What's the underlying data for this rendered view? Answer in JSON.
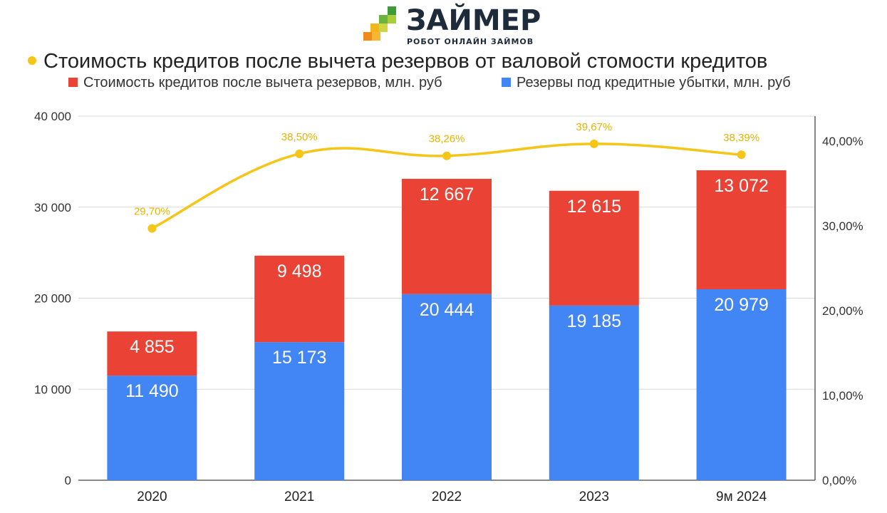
{
  "logo": {
    "name": "ЗАЙМЕР",
    "tagline": "РОБОТ ОНЛАЙН ЗАЙМОВ"
  },
  "colors": {
    "net": "#ea4335",
    "reserves": "#4285f4",
    "ratio": "#f5c518",
    "ratio_label": "#e8b400"
  },
  "chart_data": {
    "type": "bar",
    "stacked": true,
    "title": "Стоимость кредитов после вычета резервов от валовой стомости кредитов",
    "categories": [
      "2020",
      "2021",
      "2022",
      "2023",
      "9м 2024"
    ],
    "series": [
      {
        "name": "Резервы под кредитные убытки, млн. руб",
        "type": "bar",
        "axis": "left",
        "values": [
          11490,
          15173,
          20444,
          19185,
          20979
        ],
        "labels": [
          "11 490",
          "15 173",
          "20 444",
          "19 185",
          "20 979"
        ]
      },
      {
        "name": "Стоимость кредитов после вычета резервов, млн. руб",
        "type": "bar",
        "axis": "left",
        "values": [
          4855,
          9498,
          12667,
          12615,
          13072
        ],
        "labels": [
          "4 855",
          "9 498",
          "12 667",
          "12 615",
          "13 072"
        ]
      },
      {
        "name": "Стоимость кредитов после вычета резервов от валовой стомости кредитов",
        "type": "line",
        "axis": "right",
        "values": [
          29.7,
          38.5,
          38.26,
          39.67,
          38.39
        ],
        "labels": [
          "29,70%",
          "38,50%",
          "38,26%",
          "39,67%",
          "38,39%"
        ]
      }
    ],
    "legend": {
      "line_entry": "Стоимость кредитов после вычета резервов от валовой стомости кредитов",
      "bar_entries": [
        "Стоимость кредитов после вычета резервов, млн. руб",
        "Резервы под кредитные убытки, млн. руб"
      ],
      "position": "top"
    },
    "left_axis": {
      "ylim": [
        0,
        40000
      ],
      "ticks": [
        0,
        10000,
        20000,
        30000,
        40000
      ],
      "tick_labels": [
        "0",
        "10 000",
        "20 000",
        "30 000",
        "40 000"
      ]
    },
    "right_axis": {
      "ylim": [
        0,
        40
      ],
      "ticks": [
        0,
        10,
        20,
        30,
        40
      ],
      "tick_labels": [
        "0,00%",
        "10,00%",
        "20,00%",
        "30,00%",
        "40,00%"
      ]
    },
    "grid": true
  }
}
